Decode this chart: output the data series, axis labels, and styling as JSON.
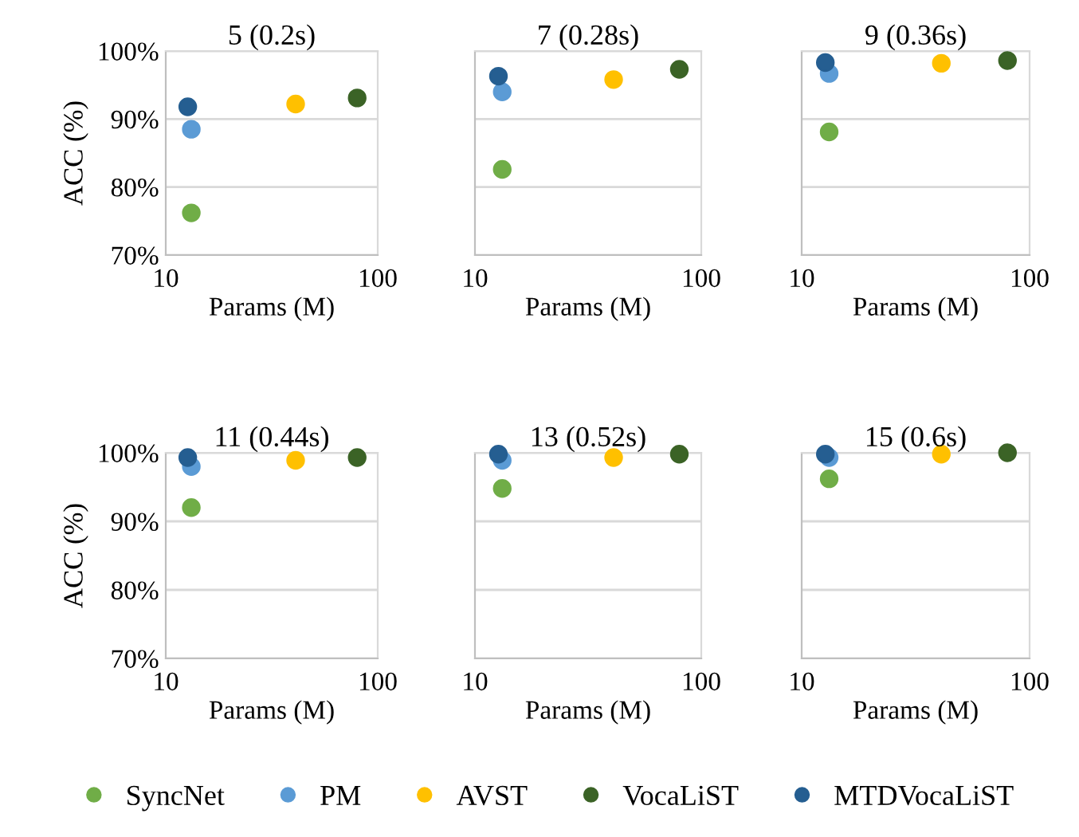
{
  "chart_data": [
    {
      "type": "scatter",
      "title": "5 (0.2s)",
      "xlabel": "Params (M)",
      "ylabel": "ACC (%)",
      "log": "x",
      "xlim": [
        10,
        100
      ],
      "xticks": [
        10,
        100
      ],
      "ylim": [
        70,
        100
      ],
      "yticks": [
        {
          "value": 70,
          "label": "70%"
        },
        {
          "value": 80,
          "label": "80%"
        },
        {
          "value": 90,
          "label": "90%"
        },
        {
          "value": 100,
          "label": "100%"
        }
      ],
      "grid": "y",
      "marker": "circle",
      "legend": "bottom",
      "series": [
        {
          "name": "SyncNet",
          "color": "#70ad47",
          "x": [
            13.2
          ],
          "values": [
            76.2
          ]
        },
        {
          "name": "PM",
          "color": "#5b9bd5",
          "x": [
            13.2
          ],
          "values": [
            88.5
          ]
        },
        {
          "name": "AVST",
          "color": "#ffc000",
          "x": [
            41
          ],
          "values": [
            92.2
          ]
        },
        {
          "name": "VocaLiST",
          "color": "#3b6326",
          "x": [
            80
          ],
          "values": [
            93.1
          ]
        },
        {
          "name": "MTDVocaLiST",
          "color": "#255e91",
          "x": [
            12.7
          ],
          "values": [
            91.8
          ]
        }
      ]
    },
    {
      "type": "scatter",
      "title": "7 (0.28s)",
      "xlabel": "Params (M)",
      "log": "x",
      "xlim": [
        10,
        100
      ],
      "xticks": [
        10,
        100
      ],
      "ylim": [
        70,
        100
      ],
      "yticks": [
        {
          "value": 70,
          "label": "70%"
        },
        {
          "value": 80,
          "label": "80%"
        },
        {
          "value": 90,
          "label": "90%"
        },
        {
          "value": 100,
          "label": "100%"
        }
      ],
      "grid": "y",
      "marker": "circle",
      "tick_labels": "x",
      "legend": "bottom",
      "series": [
        {
          "name": "SyncNet",
          "color": "#70ad47",
          "x": [
            13.2
          ],
          "values": [
            82.6
          ]
        },
        {
          "name": "PM",
          "color": "#5b9bd5",
          "x": [
            13.2
          ],
          "values": [
            94.0
          ]
        },
        {
          "name": "AVST",
          "color": "#ffc000",
          "x": [
            41
          ],
          "values": [
            95.8
          ]
        },
        {
          "name": "VocaLiST",
          "color": "#3b6326",
          "x": [
            80
          ],
          "values": [
            97.3
          ]
        },
        {
          "name": "MTDVocaLiST",
          "color": "#255e91",
          "x": [
            12.7
          ],
          "values": [
            96.3
          ]
        }
      ]
    },
    {
      "type": "scatter",
      "title": "9 (0.36s)",
      "xlabel": "Params (M)",
      "log": "x",
      "xlim": [
        10,
        100
      ],
      "xticks": [
        10,
        100
      ],
      "ylim": [
        70,
        100
      ],
      "yticks": [
        {
          "value": 70,
          "label": "70%"
        },
        {
          "value": 80,
          "label": "80%"
        },
        {
          "value": 90,
          "label": "90%"
        },
        {
          "value": 100,
          "label": "100%"
        }
      ],
      "grid": "y",
      "marker": "circle",
      "tick_labels": "x",
      "legend": "bottom",
      "series": [
        {
          "name": "SyncNet",
          "color": "#70ad47",
          "x": [
            13.2
          ],
          "values": [
            88.1
          ]
        },
        {
          "name": "PM",
          "color": "#5b9bd5",
          "x": [
            13.2
          ],
          "values": [
            96.7
          ]
        },
        {
          "name": "AVST",
          "color": "#ffc000",
          "x": [
            41
          ],
          "values": [
            98.2
          ]
        },
        {
          "name": "VocaLiST",
          "color": "#3b6326",
          "x": [
            80
          ],
          "values": [
            98.6
          ]
        },
        {
          "name": "MTDVocaLiST",
          "color": "#255e91",
          "x": [
            12.7
          ],
          "values": [
            98.3
          ]
        }
      ]
    },
    {
      "type": "scatter",
      "title": "11 (0.44s)",
      "xlabel": "Params (M)",
      "ylabel": "ACC (%)",
      "log": "x",
      "xlim": [
        10,
        100
      ],
      "xticks": [
        10,
        100
      ],
      "ylim": [
        70,
        100
      ],
      "yticks": [
        {
          "value": 70,
          "label": "70%"
        },
        {
          "value": 80,
          "label": "80%"
        },
        {
          "value": 90,
          "label": "90%"
        },
        {
          "value": 100,
          "label": "100%"
        }
      ],
      "grid": "y",
      "marker": "circle",
      "legend": "bottom",
      "series": [
        {
          "name": "SyncNet",
          "color": "#70ad47",
          "x": [
            13.2
          ],
          "values": [
            92.0
          ]
        },
        {
          "name": "PM",
          "color": "#5b9bd5",
          "x": [
            13.2
          ],
          "values": [
            98.0
          ]
        },
        {
          "name": "AVST",
          "color": "#ffc000",
          "x": [
            41
          ],
          "values": [
            98.9
          ]
        },
        {
          "name": "VocaLiST",
          "color": "#3b6326",
          "x": [
            80
          ],
          "values": [
            99.3
          ]
        },
        {
          "name": "MTDVocaLiST",
          "color": "#255e91",
          "x": [
            12.7
          ],
          "values": [
            99.3
          ]
        }
      ]
    },
    {
      "type": "scatter",
      "title": "13 (0.52s)",
      "xlabel": "Params (M)",
      "log": "x",
      "xlim": [
        10,
        100
      ],
      "xticks": [
        10,
        100
      ],
      "ylim": [
        70,
        100
      ],
      "yticks": [
        {
          "value": 70,
          "label": "70%"
        },
        {
          "value": 80,
          "label": "80%"
        },
        {
          "value": 90,
          "label": "90%"
        },
        {
          "value": 100,
          "label": "100%"
        }
      ],
      "grid": "y",
      "marker": "circle",
      "tick_labels": "x",
      "legend": "bottom",
      "series": [
        {
          "name": "SyncNet",
          "color": "#70ad47",
          "x": [
            13.2
          ],
          "values": [
            94.8
          ]
        },
        {
          "name": "PM",
          "color": "#5b9bd5",
          "x": [
            13.2
          ],
          "values": [
            98.9
          ]
        },
        {
          "name": "AVST",
          "color": "#ffc000",
          "x": [
            41
          ],
          "values": [
            99.3
          ]
        },
        {
          "name": "VocaLiST",
          "color": "#3b6326",
          "x": [
            80
          ],
          "values": [
            99.8
          ]
        },
        {
          "name": "MTDVocaLiST",
          "color": "#255e91",
          "x": [
            12.7
          ],
          "values": [
            99.8
          ]
        }
      ]
    },
    {
      "type": "scatter",
      "title": "15 (0.6s)",
      "xlabel": "Params (M)",
      "log": "x",
      "xlim": [
        10,
        100
      ],
      "xticks": [
        10,
        100
      ],
      "ylim": [
        70,
        100
      ],
      "yticks": [
        {
          "value": 70,
          "label": "70%"
        },
        {
          "value": 80,
          "label": "80%"
        },
        {
          "value": 90,
          "label": "90%"
        },
        {
          "value": 100,
          "label": "100%"
        }
      ],
      "grid": "y",
      "marker": "circle",
      "tick_labels": "x",
      "legend": "bottom",
      "series": [
        {
          "name": "SyncNet",
          "color": "#70ad47",
          "x": [
            13.2
          ],
          "values": [
            96.2
          ]
        },
        {
          "name": "PM",
          "color": "#5b9bd5",
          "x": [
            13.2
          ],
          "values": [
            99.3
          ]
        },
        {
          "name": "AVST",
          "color": "#ffc000",
          "x": [
            41
          ],
          "values": [
            99.8
          ]
        },
        {
          "name": "VocaLiST",
          "color": "#3b6326",
          "x": [
            80
          ],
          "values": [
            100
          ]
        },
        {
          "name": "MTDVocaLiST",
          "color": "#255e91",
          "x": [
            12.7
          ],
          "values": [
            99.8
          ]
        }
      ]
    }
  ]
}
